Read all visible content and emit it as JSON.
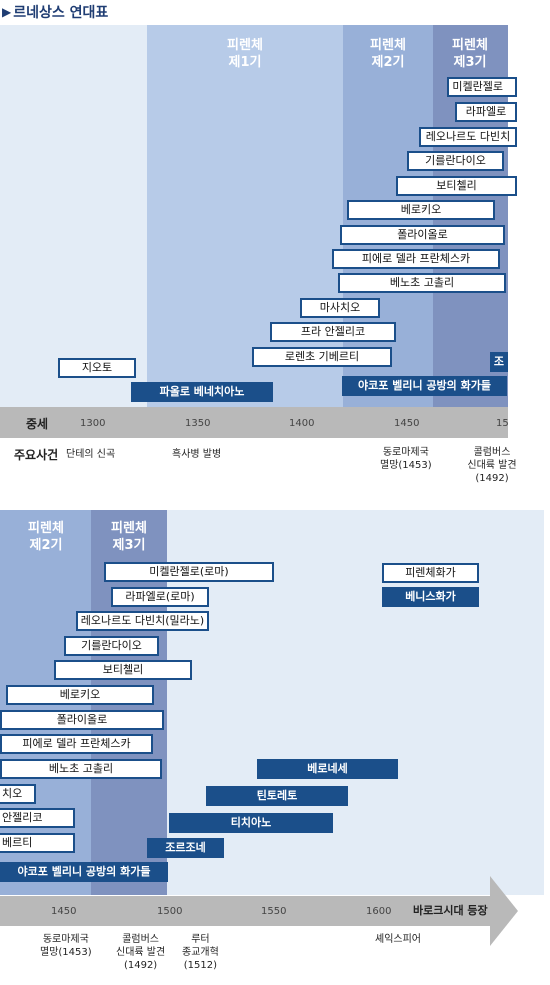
{
  "title": "르네상스 연대표",
  "top": {
    "periods": [
      "피렌체\n제1기",
      "피렌체\n제2기",
      "피렌체\n제3기"
    ],
    "artists": [
      "미켈란젤로",
      "라파엘로",
      "레오나르도 다빈치",
      "기를란다이오",
      "보티첼리",
      "베로키오",
      "폴라이올로",
      "피에로 델라 프란체스카",
      "베노초 고촐리",
      "마사치오",
      "프라 안젤리코",
      "로렌초 기베르티",
      "지오토"
    ],
    "dark_boxes": [
      "파올로 베네치아노",
      "야코포 벨리니 공방의 화가들",
      "조"
    ],
    "era_label": "중세",
    "ticks": [
      "1300",
      "1350",
      "1400",
      "1450",
      "15"
    ],
    "events_label": "주요사건",
    "events": [
      "단테의 신곡",
      "흑사병 발병",
      "동로마제국\n멸망(1453)",
      "콜럼버스\n신대륙 발견\n(1492)"
    ]
  },
  "bottom": {
    "periods": [
      "피렌체\n제2기",
      "피렌체\n제3기"
    ],
    "artists": [
      "미켈란젤로(로마)",
      "라파엘로(로마)",
      "레오나르도 다빈치(밀라노)",
      "기를란다이오",
      "보티첼리",
      "베로키오",
      "폴라이올로",
      "피에로 델라 프란체스카",
      "베노초 고촐리",
      "치오",
      "안젤리코",
      "베르티"
    ],
    "dark_boxes": [
      "야코포 벨리니 공방의 화가들",
      "조르조네",
      "티치아노",
      "틴토레토",
      "베로네세"
    ],
    "legend": [
      "피렌체화가",
      "베니스화가"
    ],
    "ticks": [
      "1450",
      "1500",
      "1550",
      "1600"
    ],
    "baroque_label": "바로크시대 등장",
    "events": [
      "동로마제국\n멸망(1453)",
      "콜럼버스\n신대륙 발견\n(1492)",
      "루터\n종교개혁\n(1512)",
      "셰익스피어"
    ]
  },
  "colors": {
    "dark_blue": "#1b4f8a",
    "medieval_bg": "#e3ecf6",
    "period1_bg": "#b7cbe8",
    "period2_bg": "#98b0d8",
    "period3_bg": "#7f92bf",
    "axis": "#b9b9b9"
  }
}
